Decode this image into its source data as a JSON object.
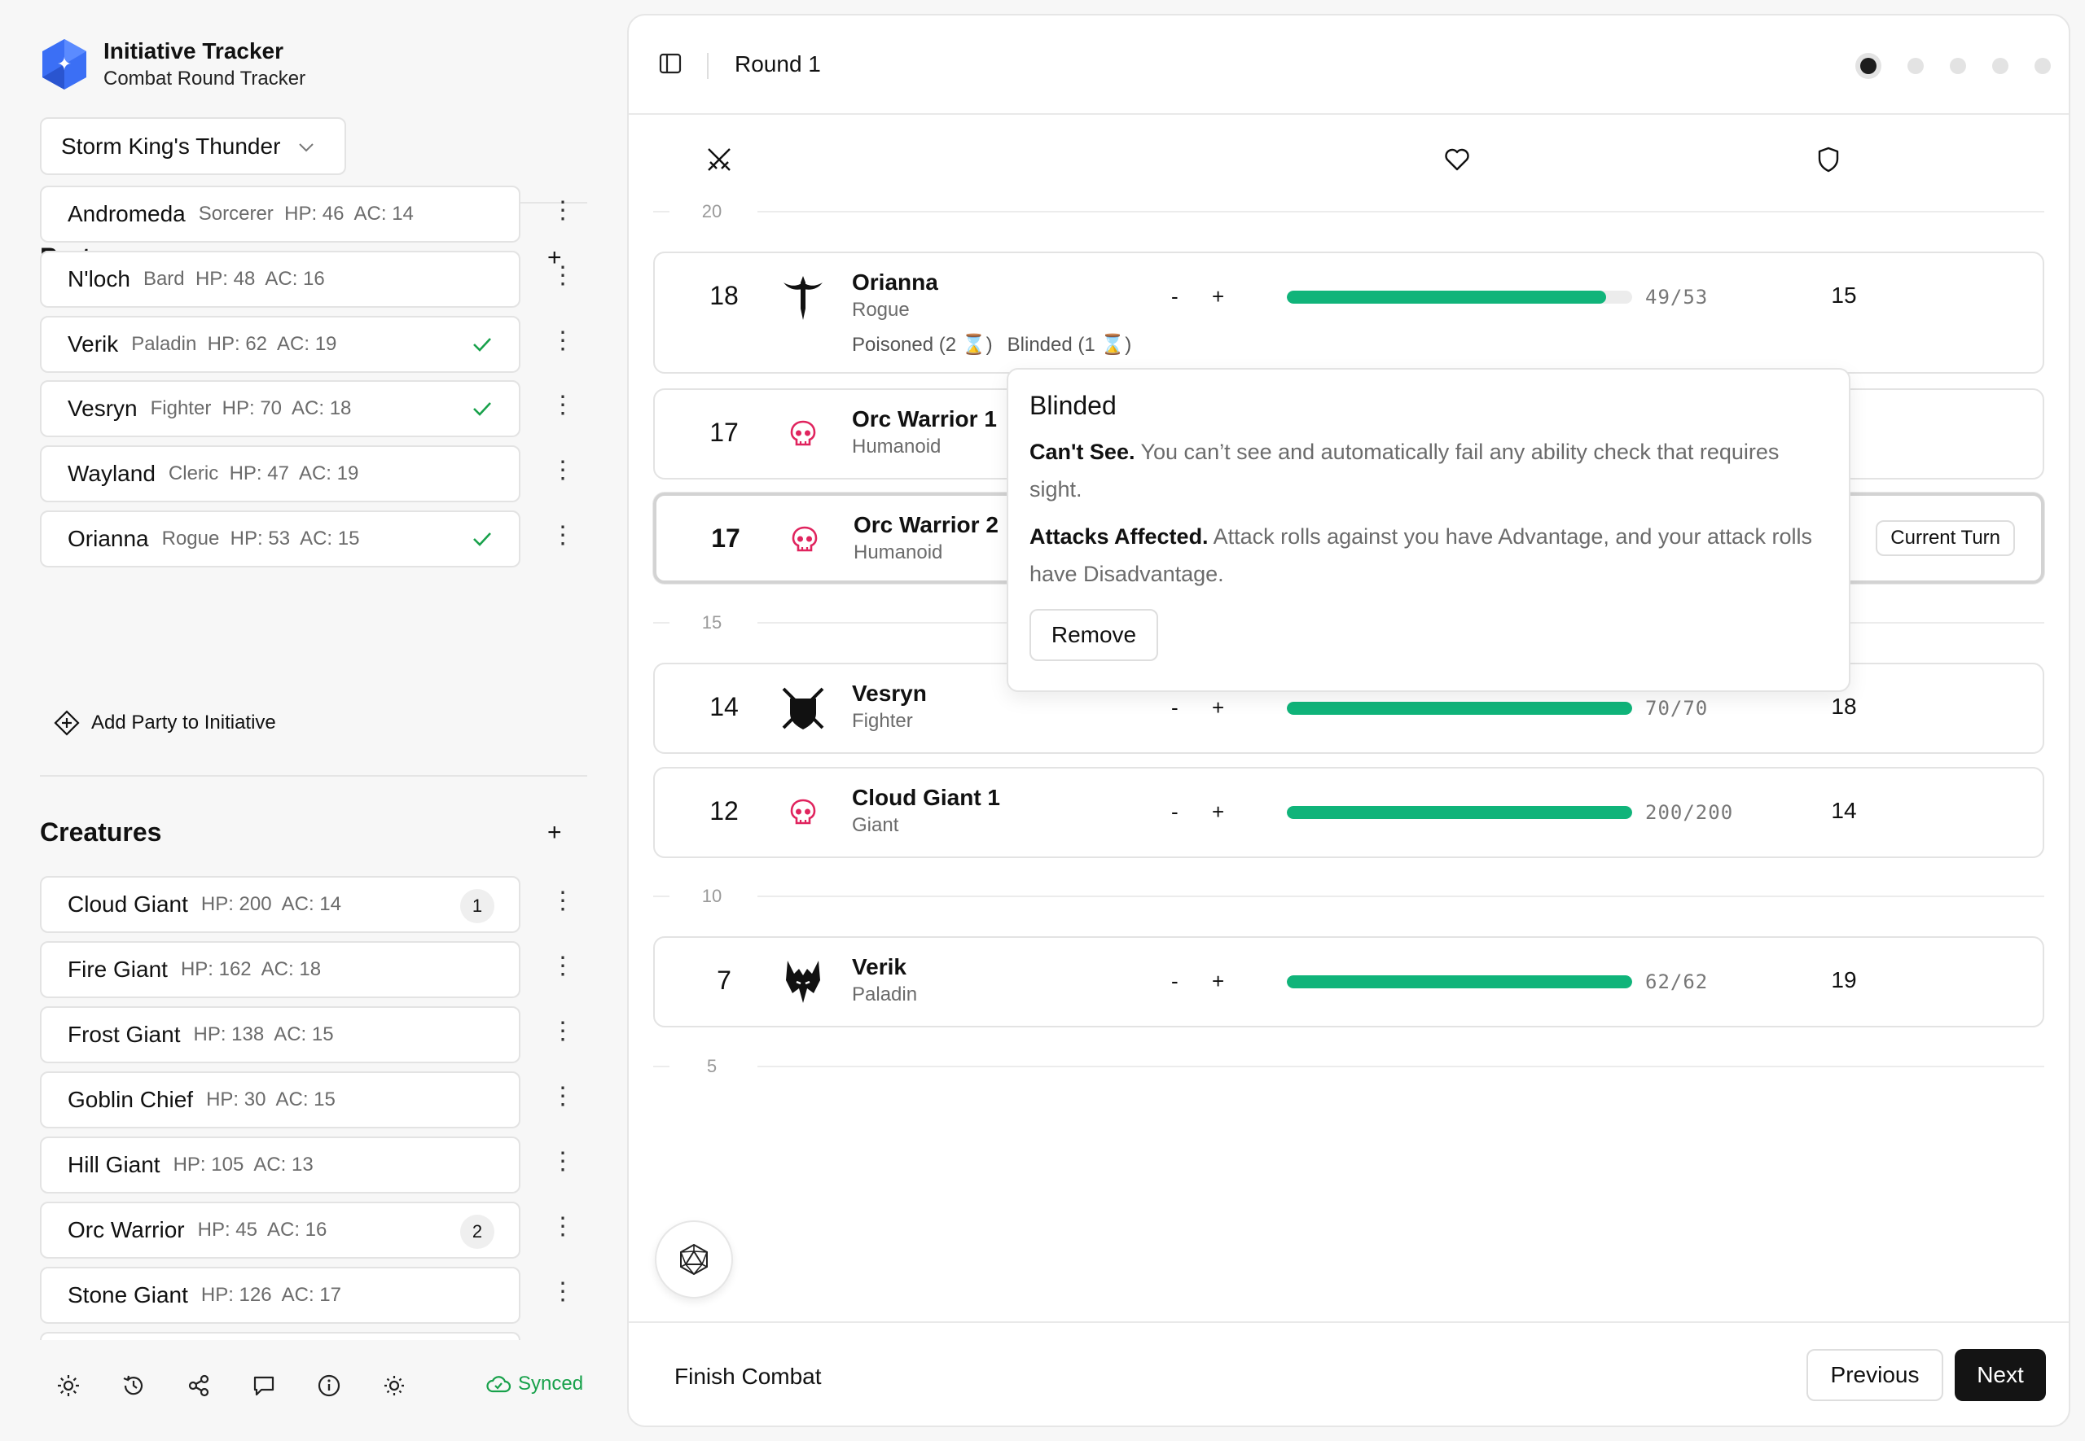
{
  "app": {
    "title": "Initiative Tracker",
    "subtitle": "Combat Round Tracker",
    "campaign": "Storm King's Thunder"
  },
  "party": {
    "title": "Party",
    "add_label": "+",
    "items": [
      {
        "name": "Andromeda",
        "meta": "Sorcerer  HP: 46  AC: 14",
        "checked": false
      },
      {
        "name": "N'loch",
        "meta": "Bard  HP: 48  AC: 16",
        "checked": false
      },
      {
        "name": "Verik",
        "meta": "Paladin  HP: 62  AC: 19",
        "checked": true
      },
      {
        "name": "Vesryn",
        "meta": "Fighter  HP: 70  AC: 18",
        "checked": true
      },
      {
        "name": "Wayland",
        "meta": "Cleric  HP: 47  AC: 19",
        "checked": false
      },
      {
        "name": "Orianna",
        "meta": "Rogue  HP: 53  AC: 15",
        "checked": true
      }
    ],
    "add_to_initiative": "Add Party to Initiative"
  },
  "creatures": {
    "title": "Creatures",
    "add_label": "+",
    "items": [
      {
        "name": "Cloud Giant",
        "meta": "HP: 200  AC: 14",
        "badge": "1"
      },
      {
        "name": "Fire Giant",
        "meta": "HP: 162  AC: 18",
        "badge": ""
      },
      {
        "name": "Frost Giant",
        "meta": "HP: 138  AC: 15",
        "badge": ""
      },
      {
        "name": "Goblin Chief",
        "meta": "HP: 30  AC: 15",
        "badge": ""
      },
      {
        "name": "Hill Giant",
        "meta": "HP: 105  AC: 13",
        "badge": ""
      },
      {
        "name": "Orc Warrior",
        "meta": "HP: 45  AC: 16",
        "badge": "2"
      },
      {
        "name": "Stone Giant",
        "meta": "HP: 126  AC: 17",
        "badge": ""
      }
    ]
  },
  "footer_left": {
    "synced": "Synced"
  },
  "topbar": {
    "round": "Round 1",
    "round_dots": 5,
    "active_dot": 1
  },
  "scale": [
    "20",
    "15",
    "10",
    "5"
  ],
  "combatants": [
    {
      "init": "18",
      "name": "Orianna",
      "type": "Rogue",
      "icon": "rogue-icon",
      "hp": "49/53",
      "hp_fraction": 0.9245,
      "ac": "15",
      "conditions": [
        "Poisoned (2 ⌛)",
        "Blinded (1 ⌛)"
      ],
      "current": false
    },
    {
      "init": "17",
      "name": "Orc Warrior 1",
      "type": "Humanoid",
      "icon": "skull-icon",
      "hp": "",
      "hp_fraction": null,
      "ac": "",
      "conditions": [],
      "current": false
    },
    {
      "init": "17",
      "name": "Orc Warrior 2",
      "type": "Humanoid",
      "icon": "skull-icon",
      "hp": "",
      "hp_fraction": null,
      "ac": "",
      "conditions": [],
      "current": true,
      "current_label": "Current Turn"
    },
    {
      "init": "14",
      "name": "Vesryn",
      "type": "Fighter",
      "icon": "fighter-icon",
      "hp": "70/70",
      "hp_fraction": 1.0,
      "ac": "18",
      "conditions": [],
      "current": false
    },
    {
      "init": "12",
      "name": "Cloud Giant 1",
      "type": "Giant",
      "icon": "skull-icon",
      "hp": "200/200",
      "hp_fraction": 1.0,
      "ac": "14",
      "conditions": [],
      "current": false
    },
    {
      "init": "7",
      "name": "Verik",
      "type": "Paladin",
      "icon": "paladin-icon",
      "hp": "62/62",
      "hp_fraction": 1.0,
      "ac": "19",
      "conditions": [],
      "current": false
    }
  ],
  "popover": {
    "title": "Blinded",
    "p1_bold": "Can't See.",
    "p1_text": "You can’t see and automatically fail any ability check that requires sight.",
    "p2_bold": "Attacks Affected.",
    "p2_text": "Attack rolls against you have Advantage, and your attack rolls have Disadvantage.",
    "remove": "Remove"
  },
  "footer": {
    "finish": "Finish Combat",
    "previous": "Previous",
    "next": "Next"
  },
  "colors": {
    "hp_bar": "#10b47a",
    "synced": "#18a14b",
    "monster_icon": "#e0245e",
    "logo": "#3b6ff5"
  }
}
